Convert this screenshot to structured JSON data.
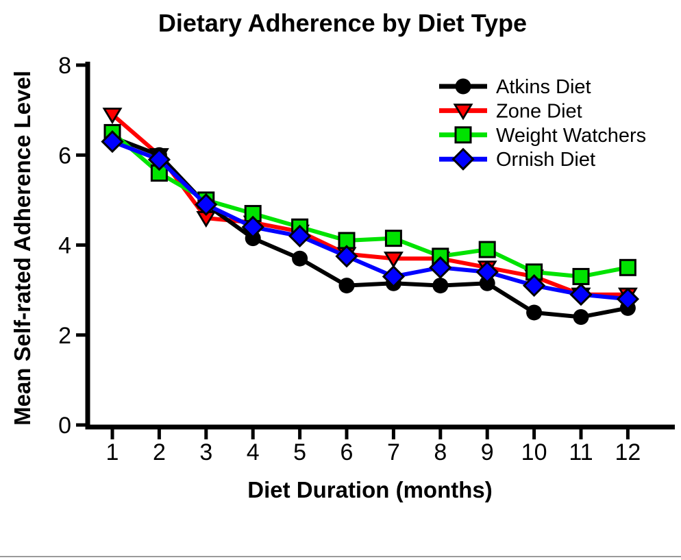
{
  "figure": {
    "title": "Dietary Adherence by Diet Type"
  },
  "chart_data": {
    "type": "line",
    "title": "Dietary Adherence by Diet Type",
    "xlabel": "Diet Duration (months)",
    "ylabel": "Mean Self-rated Adherence Level",
    "x": [
      1,
      2,
      3,
      4,
      5,
      6,
      7,
      8,
      9,
      10,
      11,
      12
    ],
    "xticks": [
      1,
      2,
      3,
      4,
      5,
      6,
      7,
      8,
      9,
      10,
      11,
      12
    ],
    "ylim": [
      0,
      8
    ],
    "yticks": [
      0,
      2,
      4,
      6,
      8
    ],
    "grid": false,
    "legend_position": "top-right-inside",
    "background_color": "#ffffff",
    "axis_color": "#000000",
    "draw_order": [
      "Zone Diet",
      "Atkins Diet",
      "Weight Watchers",
      "Ornish Diet"
    ],
    "series": [
      {
        "name": "Atkins Diet",
        "marker": "circle",
        "color": "#000000",
        "values": [
          6.4,
          6.0,
          4.9,
          4.15,
          3.7,
          3.1,
          3.15,
          3.1,
          3.15,
          2.5,
          2.4,
          2.6
        ]
      },
      {
        "name": "Zone Diet",
        "marker": "triangle-down",
        "color": "#ff0000",
        "values": [
          6.9,
          6.0,
          4.6,
          4.5,
          4.3,
          3.8,
          3.7,
          3.7,
          3.5,
          3.3,
          2.9,
          2.9
        ]
      },
      {
        "name": "Weight Watchers",
        "marker": "square",
        "color": "#00e300",
        "values": [
          6.5,
          5.6,
          5.0,
          4.7,
          4.4,
          4.1,
          4.15,
          3.75,
          3.9,
          3.4,
          3.3,
          3.5
        ]
      },
      {
        "name": "Ornish Diet",
        "marker": "diamond",
        "color": "#0000ff",
        "values": [
          6.3,
          5.9,
          4.9,
          4.4,
          4.2,
          3.75,
          3.3,
          3.5,
          3.4,
          3.1,
          2.9,
          2.8
        ]
      }
    ]
  }
}
